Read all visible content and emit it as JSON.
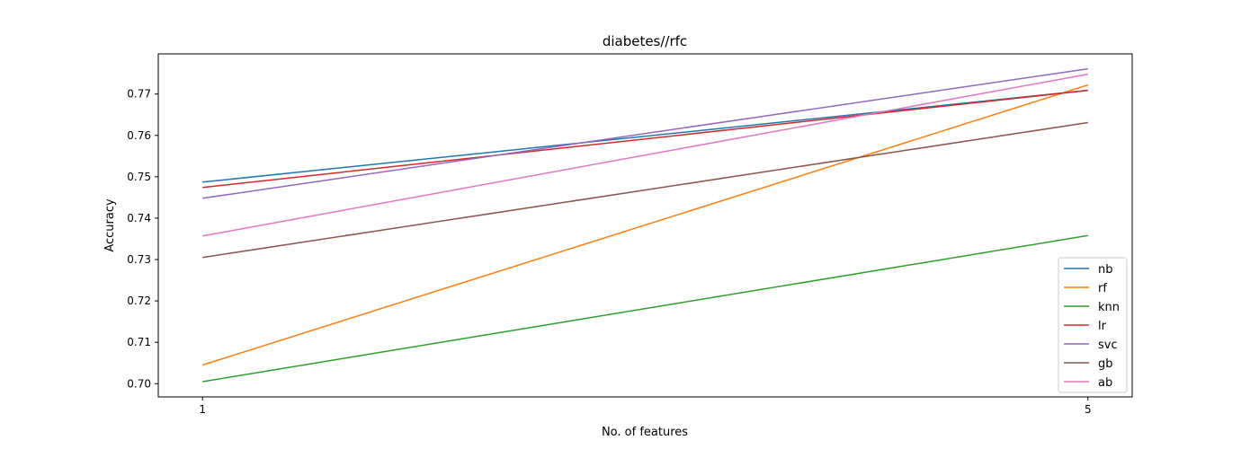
{
  "chart_data": {
    "type": "line",
    "title": "diabetes//rfc",
    "xlabel": "No. of features",
    "ylabel": "Accuracy",
    "x": [
      1,
      5
    ],
    "xticks": [
      "1",
      "5"
    ],
    "yticks": [
      "0.70",
      "0.71",
      "0.72",
      "0.73",
      "0.74",
      "0.75",
      "0.76",
      "0.77"
    ],
    "ytick_values": [
      0.7,
      0.71,
      0.72,
      0.73,
      0.74,
      0.75,
      0.76,
      0.77
    ],
    "xlim": [
      0.8,
      5.2
    ],
    "ylim": [
      0.6968,
      0.7797
    ],
    "grid": false,
    "legend_position": "lower-right",
    "series": [
      {
        "name": "nb",
        "color": "#1f77b4",
        "values": [
          0.7487,
          0.7709
        ]
      },
      {
        "name": "rf",
        "color": "#ff7f0e",
        "values": [
          0.7045,
          0.7722
        ]
      },
      {
        "name": "knn",
        "color": "#2ca02c",
        "values": [
          0.7005,
          0.7358
        ]
      },
      {
        "name": "lr",
        "color": "#d62728",
        "values": [
          0.7474,
          0.7709
        ]
      },
      {
        "name": "svc",
        "color": "#9467bd",
        "values": [
          0.7448,
          0.7761
        ]
      },
      {
        "name": "gb",
        "color": "#8c564b",
        "values": [
          0.7305,
          0.7631
        ]
      },
      {
        "name": "ab",
        "color": "#e377c2",
        "values": [
          0.7357,
          0.7748
        ]
      }
    ]
  }
}
